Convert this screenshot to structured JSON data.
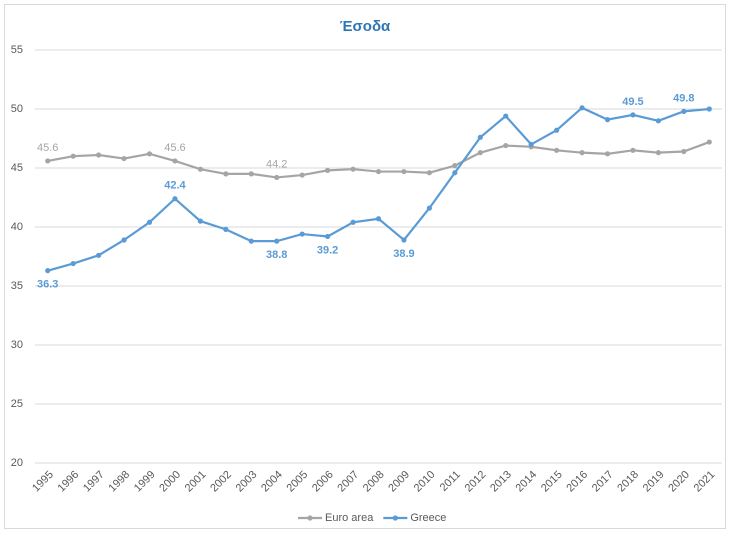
{
  "chart_data": {
    "type": "line",
    "title": "Έσοδα",
    "categories": [
      "1995",
      "1996",
      "1997",
      "1998",
      "1999",
      "2000",
      "2001",
      "2002",
      "2003",
      "2004",
      "2005",
      "2006",
      "2007",
      "2008",
      "2009",
      "2010",
      "2011",
      "2012",
      "2013",
      "2014",
      "2015",
      "2016",
      "2017",
      "2018",
      "2019",
      "2020",
      "2021"
    ],
    "series": [
      {
        "name": "Euro area",
        "color": "#a5a5a5",
        "values": [
          45.6,
          46.0,
          46.1,
          45.8,
          46.2,
          45.6,
          44.9,
          44.5,
          44.5,
          44.2,
          44.4,
          44.8,
          44.9,
          44.7,
          44.7,
          44.6,
          45.2,
          46.3,
          46.9,
          46.8,
          46.5,
          46.3,
          46.2,
          46.5,
          46.3,
          46.4,
          47.2
        ],
        "value_labels": [
          "45.6",
          null,
          null,
          null,
          null,
          "45.6",
          null,
          null,
          null,
          "44.2",
          null,
          null,
          null,
          null,
          null,
          null,
          null,
          null,
          null,
          null,
          null,
          null,
          null,
          null,
          null,
          null,
          null
        ]
      },
      {
        "name": "Greece",
        "color": "#5b9bd5",
        "values": [
          36.3,
          36.9,
          37.6,
          38.9,
          40.4,
          42.4,
          40.5,
          39.8,
          38.8,
          38.8,
          39.4,
          39.2,
          40.4,
          40.7,
          38.9,
          41.6,
          44.6,
          47.6,
          49.4,
          47.0,
          48.2,
          50.1,
          49.1,
          49.5,
          49.0,
          49.8,
          50.0
        ],
        "value_labels": [
          "36.3",
          null,
          null,
          null,
          null,
          "42.4",
          null,
          null,
          null,
          "38.8",
          null,
          "39.2",
          null,
          null,
          "38.9",
          null,
          null,
          null,
          null,
          null,
          null,
          null,
          null,
          "49.5",
          null,
          "49.8",
          null
        ]
      }
    ],
    "ylim": [
      20,
      55
    ],
    "yticks": [
      20,
      25,
      30,
      35,
      40,
      45,
      50,
      55
    ],
    "grid": true,
    "legend": "bottom"
  }
}
